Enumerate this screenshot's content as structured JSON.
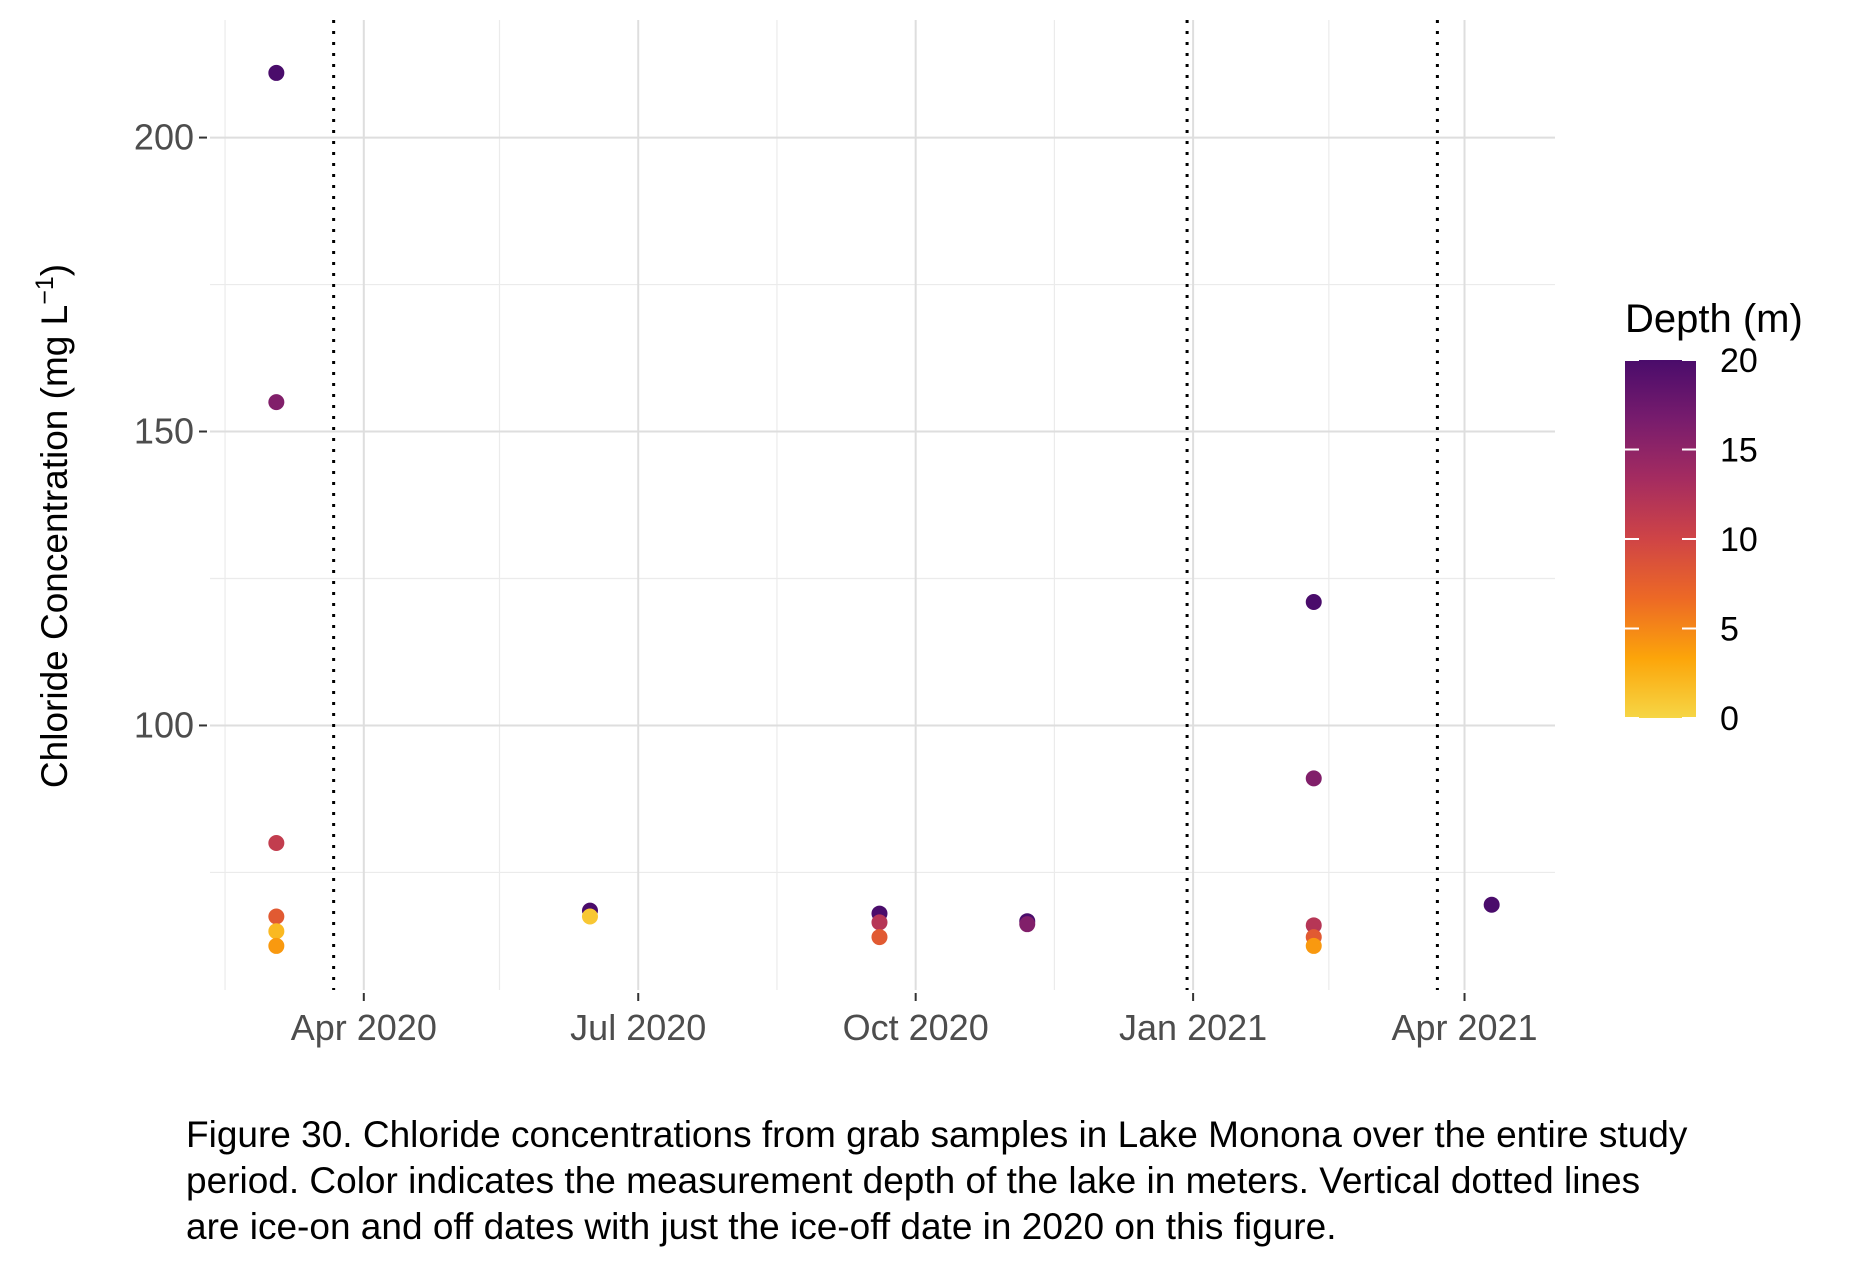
{
  "chart_data": {
    "type": "scatter",
    "title": "",
    "xlabel": "",
    "ylabel": "Chloride Concentration (mg L",
    "ylabel_superscript": "−1",
    "ylabel_close": ")",
    "x_type": "date",
    "xlim": [
      "2020-02-10",
      "2021-05-01"
    ],
    "ylim": [
      55,
      220
    ],
    "x_ticks": [
      {
        "date": "2020-04-01",
        "label": "Apr 2020"
      },
      {
        "date": "2020-07-01",
        "label": "Jul 2020"
      },
      {
        "date": "2020-10-01",
        "label": "Oct 2020"
      },
      {
        "date": "2021-01-01",
        "label": "Jan 2021"
      },
      {
        "date": "2021-04-01",
        "label": "Apr 2021"
      }
    ],
    "x_minor_gridlines": [
      "2020-02-15",
      "2020-05-16",
      "2020-08-16",
      "2020-11-16",
      "2021-02-15",
      "2021-05-16"
    ],
    "y_ticks": [
      100,
      150,
      200
    ],
    "y_minor_gridlines": [
      75,
      125,
      175
    ],
    "grid": true,
    "ice_dates": [
      "2020-03-22",
      "2020-12-30",
      "2021-03-23"
    ],
    "ice_line_style": "dotted",
    "color_scale": {
      "title": "Depth (m)",
      "min": 0,
      "max": 20,
      "ticks": [
        0,
        5,
        10,
        15,
        20
      ],
      "palette": "inferno",
      "stops": [
        "#F6D645",
        "#FCA50A",
        "#ED6925",
        "#CF4446",
        "#A52C60",
        "#781C6D",
        "#4A0C6B"
      ]
    },
    "legend_position": "right",
    "points": [
      {
        "x": "2020-03-03",
        "y": 211,
        "depth": 20
      },
      {
        "x": "2020-03-03",
        "y": 155,
        "depth": 16
      },
      {
        "x": "2020-03-03",
        "y": 80,
        "depth": 11
      },
      {
        "x": "2020-03-03",
        "y": 67.5,
        "depth": 8
      },
      {
        "x": "2020-03-03",
        "y": 65,
        "depth": 2
      },
      {
        "x": "2020-03-03",
        "y": 62.5,
        "depth": 4
      },
      {
        "x": "2020-06-15",
        "y": 68.5,
        "depth": 20
      },
      {
        "x": "2020-06-15",
        "y": 67.5,
        "depth": 1
      },
      {
        "x": "2020-09-19",
        "y": 68,
        "depth": 20
      },
      {
        "x": "2020-09-19",
        "y": 66.5,
        "depth": 12
      },
      {
        "x": "2020-09-19",
        "y": 64,
        "depth": 8
      },
      {
        "x": "2020-11-07",
        "y": 66.7,
        "depth": 20
      },
      {
        "x": "2020-11-07",
        "y": 66.2,
        "depth": 16
      },
      {
        "x": "2021-02-10",
        "y": 121,
        "depth": 20
      },
      {
        "x": "2021-02-10",
        "y": 91,
        "depth": 16
      },
      {
        "x": "2021-02-10",
        "y": 66,
        "depth": 12
      },
      {
        "x": "2021-02-10",
        "y": 64,
        "depth": 8
      },
      {
        "x": "2021-02-10",
        "y": 62.5,
        "depth": 4
      },
      {
        "x": "2021-04-10",
        "y": 69.5,
        "depth": 20
      }
    ]
  },
  "caption": {
    "line1": "Figure 30. Chloride concentrations from grab samples in Lake Monona over the entire study",
    "line2": "period. Color indicates the measurement depth of the lake in meters. Vertical dotted lines",
    "line3": "are ice-on and off dates with just the ice-off date in 2020 on this figure."
  }
}
